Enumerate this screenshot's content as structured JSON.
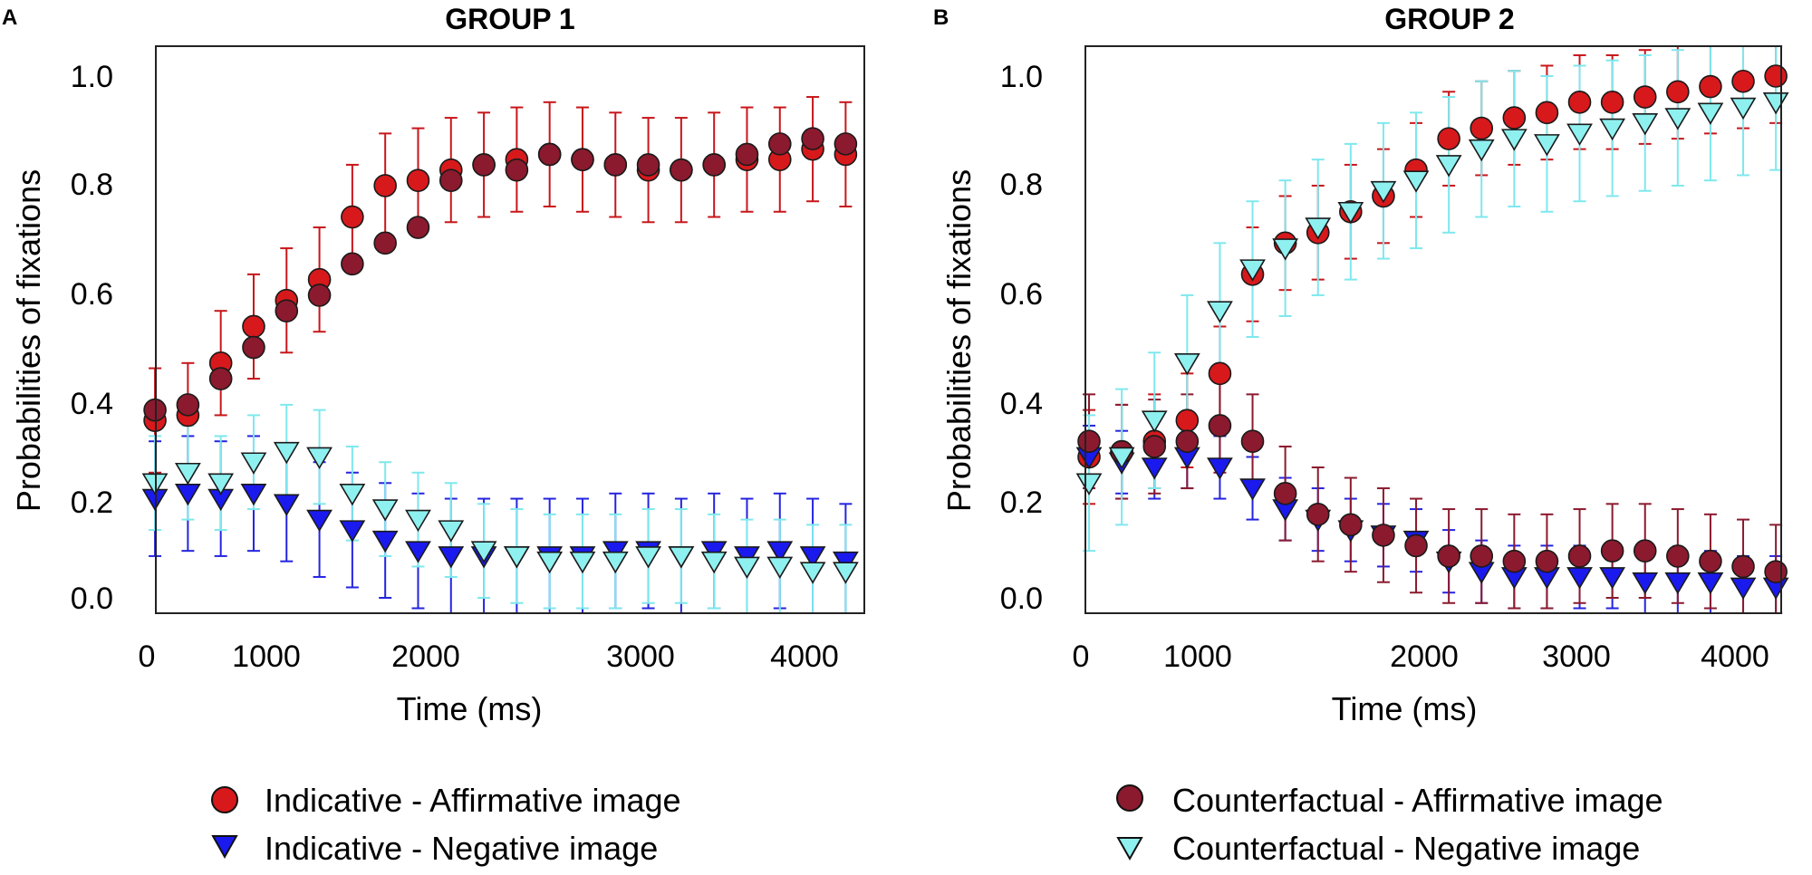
{
  "chart_data": [
    {
      "type": "scatter",
      "panel_label": "A",
      "title": "GROUP 1",
      "xlabel": "Time (ms)",
      "ylabel": "Probabilities of fixations",
      "xlim": [
        0,
        4300
      ],
      "ylim": [
        0,
        1.05
      ],
      "xticks": [
        0,
        1000,
        2000,
        3000,
        4000
      ],
      "xtick_labels": [
        "0",
        "1000",
        "2000",
        "3000",
        "4000"
      ],
      "yticks": [
        0,
        0.2,
        0.4,
        0.6,
        0.8,
        1.0
      ],
      "ytick_labels": [
        "0.0",
        "0.2",
        "0.4",
        "0.6",
        "0.8",
        "1.0"
      ],
      "grid": false,
      "legend_position": "bottom",
      "series": [
        {
          "name": "Indicative - Affirmative image",
          "marker": "circle",
          "color": "#d7191c",
          "error_color": "#c8161a",
          "error_bar": 0.1,
          "x": [
            50,
            250,
            450,
            650,
            850,
            1050,
            1250,
            1450,
            1650,
            1850,
            2050,
            2250,
            2450,
            2650,
            2850,
            3050,
            3250,
            3450,
            3650,
            3850,
            4050,
            4250
          ],
          "y": [
            0.34,
            0.35,
            0.45,
            0.52,
            0.57,
            0.61,
            0.73,
            0.79,
            0.8,
            0.82,
            0.83,
            0.84,
            0.85,
            0.84,
            0.83,
            0.82,
            0.82,
            0.83,
            0.84,
            0.84,
            0.86,
            0.85
          ]
        },
        {
          "name": "Indicative - Negative image",
          "marker": "triangle-down",
          "color": "#1a1aee",
          "error_color": "#2424e0",
          "error_bar": 0.11,
          "x": [
            50,
            250,
            450,
            650,
            850,
            1050,
            1250,
            1450,
            1650,
            1850,
            2050,
            2250,
            2450,
            2650,
            2850,
            3050,
            3250,
            3450,
            3650,
            3850,
            4050,
            4250
          ],
          "y": [
            0.19,
            0.2,
            0.19,
            0.2,
            0.18,
            0.15,
            0.13,
            0.11,
            0.09,
            0.08,
            0.08,
            0.08,
            0.08,
            0.08,
            0.09,
            0.09,
            0.08,
            0.09,
            0.08,
            0.09,
            0.08,
            0.07
          ]
        },
        {
          "name": "Counterfactual - Affirmative image",
          "marker": "circle",
          "color": "#8b1a2e",
          "error_color": "#8b1a2e",
          "error_bar": 0.0,
          "x": [
            50,
            250,
            450,
            650,
            850,
            1050,
            1250,
            1450,
            1650,
            1850,
            2050,
            2250,
            2450,
            2650,
            2850,
            3050,
            3250,
            3450,
            3650,
            3850,
            4050,
            4250
          ],
          "y": [
            0.36,
            0.37,
            0.42,
            0.48,
            0.55,
            0.58,
            0.64,
            0.68,
            0.71,
            0.8,
            0.83,
            0.82,
            0.85,
            0.84,
            0.83,
            0.83,
            0.82,
            0.83,
            0.85,
            0.87,
            0.88,
            0.87
          ]
        },
        {
          "name": "Counterfactual - Negative image",
          "marker": "triangle-down",
          "color": "#8ff0f0",
          "error_color": "#7ee8ee",
          "error_bar": 0.09,
          "x": [
            50,
            250,
            450,
            650,
            850,
            1050,
            1250,
            1450,
            1650,
            1850,
            2050,
            2250,
            2450,
            2650,
            2850,
            3050,
            3250,
            3450,
            3650,
            3850,
            4050,
            4250
          ],
          "y": [
            0.22,
            0.24,
            0.22,
            0.26,
            0.28,
            0.27,
            0.2,
            0.17,
            0.15,
            0.13,
            0.09,
            0.08,
            0.07,
            0.07,
            0.07,
            0.08,
            0.08,
            0.07,
            0.06,
            0.06,
            0.05,
            0.05
          ]
        }
      ]
    },
    {
      "type": "scatter",
      "panel_label": "B",
      "title": "GROUP 2",
      "xlabel": "Time (ms)",
      "ylabel": "Probabilities of fixations",
      "xlim": [
        0,
        4300
      ],
      "ylim": [
        0,
        1.05
      ],
      "xticks": [
        0,
        1000,
        2000,
        3000,
        4000
      ],
      "xtick_labels": [
        "0",
        "1000",
        "2000",
        "3000",
        "4000"
      ],
      "yticks": [
        0,
        0.2,
        0.4,
        0.6,
        0.8,
        1.0
      ],
      "ytick_labels": [
        "0.0",
        "0.2",
        "0.4",
        "0.6",
        "0.8",
        "1.0"
      ],
      "grid": false,
      "legend_position": "bottom",
      "series": [
        {
          "name": "Indicative - Affirmative image",
          "marker": "circle",
          "color": "#d7191c",
          "error_color": "#c8161a",
          "error_bar": 0.09,
          "x": [
            50,
            250,
            450,
            650,
            850,
            1050,
            1250,
            1450,
            1650,
            1850,
            2050,
            2250,
            2450,
            2650,
            2850,
            3050,
            3250,
            3450,
            3650,
            3850,
            4050,
            4250
          ],
          "y": [
            0.27,
            0.28,
            0.3,
            0.34,
            0.43,
            0.62,
            0.68,
            0.7,
            0.74,
            0.77,
            0.82,
            0.88,
            0.9,
            0.92,
            0.93,
            0.95,
            0.95,
            0.96,
            0.97,
            0.98,
            0.99,
            1.0
          ]
        },
        {
          "name": "Indicative - Negative image",
          "marker": "triangle-down",
          "color": "#1a1aee",
          "error_color": "#2424e0",
          "error_bar": 0.06,
          "x": [
            50,
            250,
            450,
            650,
            850,
            1050,
            1250,
            1450,
            1650,
            1850,
            2050,
            2250,
            2450,
            2650,
            2850,
            3050,
            3250,
            3450,
            3650,
            3850,
            4050,
            4250
          ],
          "y": [
            0.27,
            0.26,
            0.25,
            0.27,
            0.25,
            0.21,
            0.17,
            0.15,
            0.13,
            0.12,
            0.11,
            0.07,
            0.05,
            0.04,
            0.04,
            0.04,
            0.04,
            0.03,
            0.03,
            0.03,
            0.02,
            0.02
          ]
        },
        {
          "name": "Counterfactual - Affirmative image",
          "marker": "circle",
          "color": "#8b1a2e",
          "error_color": "#8b1a2e",
          "error_bar": 0.09,
          "x": [
            50,
            250,
            450,
            650,
            850,
            1050,
            1250,
            1450,
            1650,
            1850,
            2050,
            2250,
            2450,
            2650,
            2850,
            3050,
            3250,
            3450,
            3650,
            3850,
            4050,
            4250
          ],
          "y": [
            0.3,
            0.28,
            0.29,
            0.3,
            0.33,
            0.3,
            0.2,
            0.16,
            0.14,
            0.12,
            0.1,
            0.08,
            0.08,
            0.07,
            0.07,
            0.08,
            0.09,
            0.09,
            0.08,
            0.07,
            0.06,
            0.05
          ]
        },
        {
          "name": "Counterfactual - Negative image",
          "marker": "triangle-down",
          "color": "#8ff0f0",
          "error_color": "#7ee8ee",
          "error_bar": 0.13,
          "x": [
            50,
            250,
            450,
            650,
            850,
            1050,
            1250,
            1450,
            1650,
            1850,
            2050,
            2250,
            2450,
            2650,
            2850,
            3050,
            3250,
            3450,
            3650,
            3850,
            4050,
            4250
          ],
          "y": [
            0.22,
            0.27,
            0.34,
            0.45,
            0.55,
            0.63,
            0.67,
            0.71,
            0.74,
            0.78,
            0.8,
            0.83,
            0.86,
            0.88,
            0.87,
            0.89,
            0.9,
            0.91,
            0.92,
            0.93,
            0.94,
            0.95
          ]
        }
      ]
    }
  ],
  "legends": [
    {
      "items": [
        {
          "label": "Indicative - Affirmative image",
          "marker": "circle",
          "color": "#d7191c"
        },
        {
          "label": "Indicative - Negative image",
          "marker": "triangle-down",
          "color": "#1a1aee"
        }
      ]
    },
    {
      "items": [
        {
          "label": "Counterfactual - Affirmative image",
          "marker": "circle",
          "color": "#8b1a2e"
        },
        {
          "label": "Counterfactual - Negative image",
          "marker": "triangle-down",
          "color": "#8ff0f0"
        }
      ]
    }
  ]
}
